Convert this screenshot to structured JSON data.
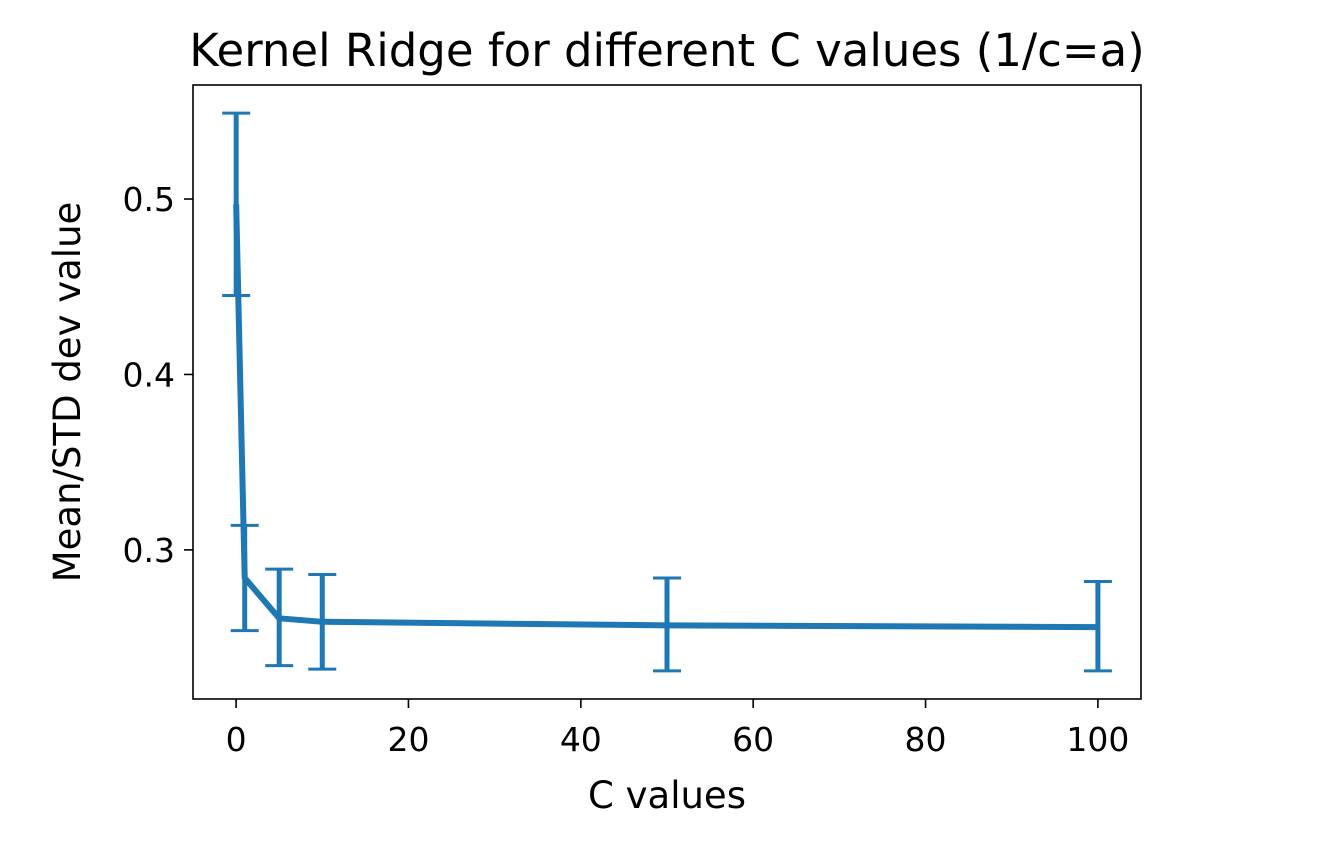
{
  "chart_data": {
    "type": "line",
    "title": "Kernel Ridge for different C values (1/c=a)",
    "xlabel": "C values",
    "ylabel": "Mean/STD dev value",
    "xlim": [
      -5,
      105
    ],
    "ylim": [
      0.215,
      0.565
    ],
    "xticks": [
      0,
      20,
      40,
      60,
      80,
      100
    ],
    "xtick_labels": [
      "0",
      "20",
      "40",
      "60",
      "80",
      "100"
    ],
    "yticks": [
      0.3,
      0.4,
      0.5
    ],
    "ytick_labels": [
      "0.3",
      "0.4",
      "0.5"
    ],
    "grid": false,
    "legend": "none",
    "series": [
      {
        "color": "#1f77b4",
        "x": [
          0.01,
          1,
          5,
          10,
          50,
          100
        ],
        "y": [
          0.497,
          0.284,
          0.261,
          0.259,
          0.257,
          0.256
        ],
        "err_low": [
          0.445,
          0.254,
          0.234,
          0.232,
          0.231,
          0.231
        ],
        "err_high": [
          0.549,
          0.314,
          0.289,
          0.286,
          0.284,
          0.282
        ]
      }
    ]
  }
}
